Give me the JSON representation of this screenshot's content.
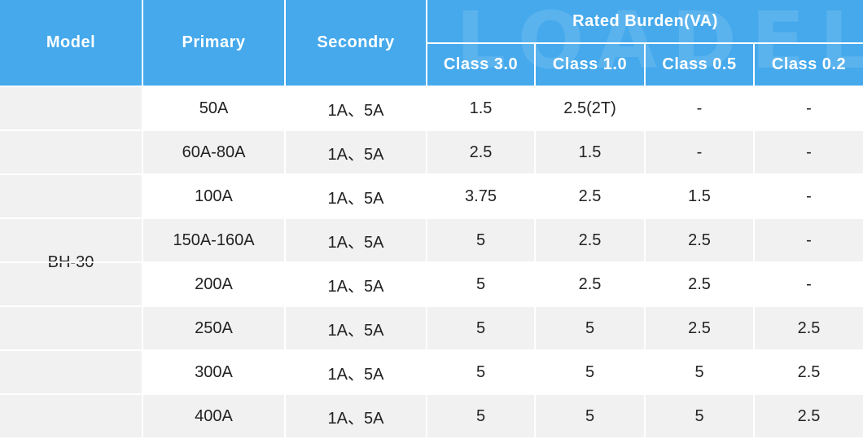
{
  "header": {
    "model": "Model",
    "primary": "Primary",
    "secondary": "Secondry",
    "rated_burden": "Rated Burden(VA)",
    "classes": [
      "Class 3.0",
      "Class 1.0",
      "Class 0.5",
      "Class 0.2"
    ]
  },
  "model": "BH-30",
  "watermark": "LOADEL",
  "colors": {
    "header_bg": "#45a9ec",
    "stripe_bg": "#f1f1f1",
    "text": "#222222"
  },
  "rows": [
    {
      "primary": "50A",
      "secondary": "1A、5A",
      "c30": "1.5",
      "c10": "2.5(2T)",
      "c05": "-",
      "c02": "-"
    },
    {
      "primary": "60A-80A",
      "secondary": "1A、5A",
      "c30": "2.5",
      "c10": "1.5",
      "c05": "-",
      "c02": "-"
    },
    {
      "primary": "100A",
      "secondary": "1A、5A",
      "c30": "3.75",
      "c10": "2.5",
      "c05": "1.5",
      "c02": "-"
    },
    {
      "primary": "150A-160A",
      "secondary": "1A、5A",
      "c30": "5",
      "c10": "2.5",
      "c05": "2.5",
      "c02": "-"
    },
    {
      "primary": "200A",
      "secondary": "1A、5A",
      "c30": "5",
      "c10": "2.5",
      "c05": "2.5",
      "c02": "-"
    },
    {
      "primary": "250A",
      "secondary": "1A、5A",
      "c30": "5",
      "c10": "5",
      "c05": "2.5",
      "c02": "2.5"
    },
    {
      "primary": "300A",
      "secondary": "1A、5A",
      "c30": "5",
      "c10": "5",
      "c05": "5",
      "c02": "2.5"
    },
    {
      "primary": "400A",
      "secondary": "1A、5A",
      "c30": "5",
      "c10": "5",
      "c05": "5",
      "c02": "2.5"
    }
  ]
}
